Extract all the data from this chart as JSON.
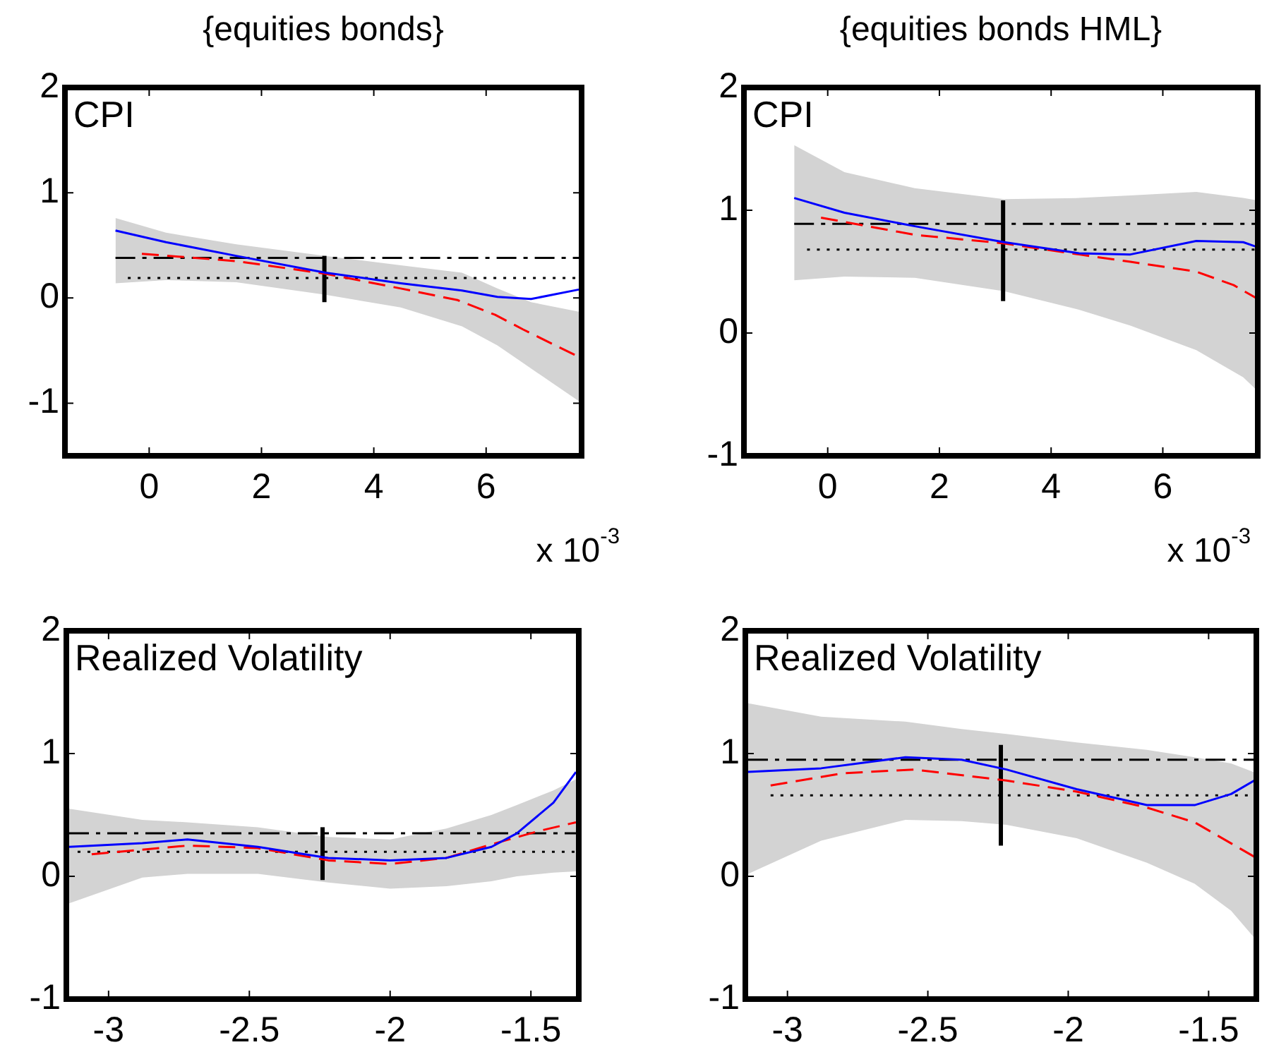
{
  "chart_data": [
    {
      "type": "line",
      "title": "{equities bonds}",
      "annotations": [
        "CPI",
        "x 10$^{-3}$"
      ],
      "xlim": [
        -1.5,
        7.7
      ],
      "xticks": [
        0,
        2,
        4,
        6
      ],
      "ylim": [
        -1.5,
        2
      ],
      "yticks": [
        -1,
        0,
        1,
        2
      ],
      "series": [
        {
          "color": "#0000ff",
          "line_style": "solid",
          "x": [
            -0.6,
            0.3,
            1.55,
            3.14,
            4.48,
            5.57,
            6.2,
            6.8,
            7.65
          ],
          "values": [
            0.64,
            0.53,
            0.4,
            0.24,
            0.14,
            0.07,
            0.01,
            -0.01,
            0.08
          ],
          "lower": [
            0.14,
            0.17,
            0.15,
            0.03,
            -0.09,
            -0.27,
            -0.45,
            -0.67,
            -0.98
          ],
          "upper": [
            0.76,
            0.62,
            0.51,
            0.4,
            0.31,
            0.24,
            0.09,
            -0.04,
            -0.13
          ]
        },
        {
          "color": "#ff0000",
          "line_style": "dashed",
          "x": [
            -0.13,
            1.55,
            3.14,
            4.48,
            5.49,
            6.16,
            6.66,
            7.65
          ],
          "values": [
            0.42,
            0.35,
            0.23,
            0.09,
            -0.02,
            -0.16,
            -0.3,
            -0.56
          ]
        },
        {
          "color": "#000000",
          "line_style": "dashdot",
          "x": [
            -0.6,
            7.7
          ],
          "values": [
            0.38,
            0.38
          ]
        },
        {
          "color": "#000000",
          "line_style": "dotted",
          "x": [
            -0.38,
            7.7
          ],
          "values": [
            0.19,
            0.19
          ]
        },
        {
          "color": "#000000",
          "line_style": "solid",
          "x": [
            3.12,
            3.12
          ],
          "values": [
            -0.04,
            0.4
          ]
        }
      ]
    },
    {
      "type": "line",
      "title": "{equities bonds HML}",
      "annotations": [
        "CPI",
        "x 10$^{-3}$"
      ],
      "xlim": [
        -1.5,
        7.7
      ],
      "xticks": [
        0,
        2,
        4,
        6
      ],
      "ylim": [
        -1,
        2
      ],
      "yticks": [
        -1,
        0,
        1,
        2
      ],
      "series": [
        {
          "color": "#0000ff",
          "line_style": "solid",
          "x": [
            -0.6,
            0.3,
            1.56,
            3.16,
            4.5,
            5.42,
            6.6,
            7.44,
            7.69
          ],
          "values": [
            1.1,
            0.98,
            0.87,
            0.74,
            0.65,
            0.64,
            0.75,
            0.74,
            0.7
          ],
          "lower": [
            0.43,
            0.46,
            0.45,
            0.34,
            0.19,
            0.06,
            -0.14,
            -0.36,
            -0.47
          ],
          "upper": [
            1.53,
            1.31,
            1.18,
            1.09,
            1.1,
            1.12,
            1.15,
            1.1,
            1.08
          ]
        },
        {
          "color": "#ff0000",
          "line_style": "dashed",
          "x": [
            -0.12,
            1.56,
            3.16,
            4.5,
            5.42,
            6.6,
            7.27,
            7.69
          ],
          "values": [
            0.94,
            0.8,
            0.73,
            0.64,
            0.58,
            0.5,
            0.39,
            0.28
          ]
        },
        {
          "color": "#000000",
          "line_style": "dashdot",
          "x": [
            -0.6,
            7.7
          ],
          "values": [
            0.89,
            0.89
          ]
        },
        {
          "color": "#000000",
          "line_style": "dotted",
          "x": [
            -0.37,
            7.7
          ],
          "values": [
            0.68,
            0.68
          ]
        },
        {
          "color": "#000000",
          "line_style": "solid",
          "x": [
            3.14,
            3.14
          ],
          "values": [
            0.26,
            1.08
          ]
        }
      ]
    },
    {
      "type": "line",
      "annotations": [
        "Realized Volatility"
      ],
      "xlim": [
        -3.15,
        -1.33
      ],
      "xticks": [
        -3,
        -2.5,
        -2,
        -1.5
      ],
      "ylim": [
        -1,
        2
      ],
      "yticks": [
        -1,
        0,
        1,
        2
      ],
      "series": [
        {
          "color": "#0000ff",
          "line_style": "solid",
          "x": [
            -3.14,
            -2.88,
            -2.72,
            -2.47,
            -2.22,
            -2.0,
            -1.8,
            -1.64,
            -1.55,
            -1.42,
            -1.34
          ],
          "values": [
            0.24,
            0.27,
            0.3,
            0.24,
            0.15,
            0.13,
            0.15,
            0.24,
            0.35,
            0.6,
            0.85
          ],
          "lower": [
            -0.22,
            -0.01,
            0.02,
            0.02,
            -0.05,
            -0.1,
            -0.08,
            -0.04,
            0.0,
            0.03,
            0.04
          ],
          "upper": [
            0.55,
            0.46,
            0.44,
            0.4,
            0.32,
            0.3,
            0.39,
            0.5,
            0.58,
            0.7,
            0.79
          ]
        },
        {
          "color": "#ff0000",
          "line_style": "dashed",
          "x": [
            -3.06,
            -2.72,
            -2.47,
            -2.22,
            -2.0,
            -1.8,
            -1.64,
            -1.47,
            -1.34
          ],
          "values": [
            0.18,
            0.25,
            0.23,
            0.13,
            0.1,
            0.15,
            0.26,
            0.37,
            0.44
          ]
        },
        {
          "color": "#000000",
          "line_style": "dashdot",
          "x": [
            -3.14,
            -1.33
          ],
          "values": [
            0.35,
            0.35
          ]
        },
        {
          "color": "#000000",
          "line_style": "dotted",
          "x": [
            -3.11,
            -1.33
          ],
          "values": [
            0.2,
            0.2
          ]
        },
        {
          "color": "#000000",
          "line_style": "solid",
          "x": [
            -2.24,
            -2.24
          ],
          "values": [
            -0.03,
            0.4
          ]
        }
      ]
    },
    {
      "type": "line",
      "annotations": [
        "Realized Volatility"
      ],
      "xlim": [
        -3.15,
        -1.33
      ],
      "xticks": [
        -3,
        -2.5,
        -2,
        -1.5
      ],
      "ylim": [
        -1,
        2
      ],
      "yticks": [
        -1,
        0,
        1,
        2
      ],
      "series": [
        {
          "color": "#0000ff",
          "line_style": "solid",
          "x": [
            -3.14,
            -2.88,
            -2.58,
            -2.38,
            -2.22,
            -1.97,
            -1.72,
            -1.55,
            -1.42,
            -1.33
          ],
          "values": [
            0.85,
            0.88,
            0.97,
            0.95,
            0.87,
            0.71,
            0.58,
            0.58,
            0.67,
            0.79
          ],
          "lower": [
            0.02,
            0.29,
            0.46,
            0.45,
            0.42,
            0.31,
            0.11,
            -0.06,
            -0.28,
            -0.52
          ],
          "upper": [
            1.41,
            1.3,
            1.26,
            1.2,
            1.16,
            1.09,
            1.03,
            0.97,
            0.92,
            0.84
          ]
        },
        {
          "color": "#ff0000",
          "line_style": "dashed",
          "x": [
            -3.06,
            -2.8,
            -2.55,
            -2.22,
            -1.97,
            -1.72,
            -1.55,
            -1.33
          ],
          "values": [
            0.74,
            0.84,
            0.87,
            0.78,
            0.69,
            0.56,
            0.44,
            0.15
          ]
        },
        {
          "color": "#000000",
          "line_style": "dashdot",
          "x": [
            -3.14,
            -1.33
          ],
          "values": [
            0.95,
            0.95
          ]
        },
        {
          "color": "#000000",
          "line_style": "dotted",
          "x": [
            -3.06,
            -1.33
          ],
          "values": [
            0.66,
            0.66
          ]
        },
        {
          "color": "#000000",
          "line_style": "solid",
          "x": [
            -2.24,
            -2.24
          ],
          "values": [
            0.25,
            1.07
          ]
        }
      ]
    }
  ]
}
